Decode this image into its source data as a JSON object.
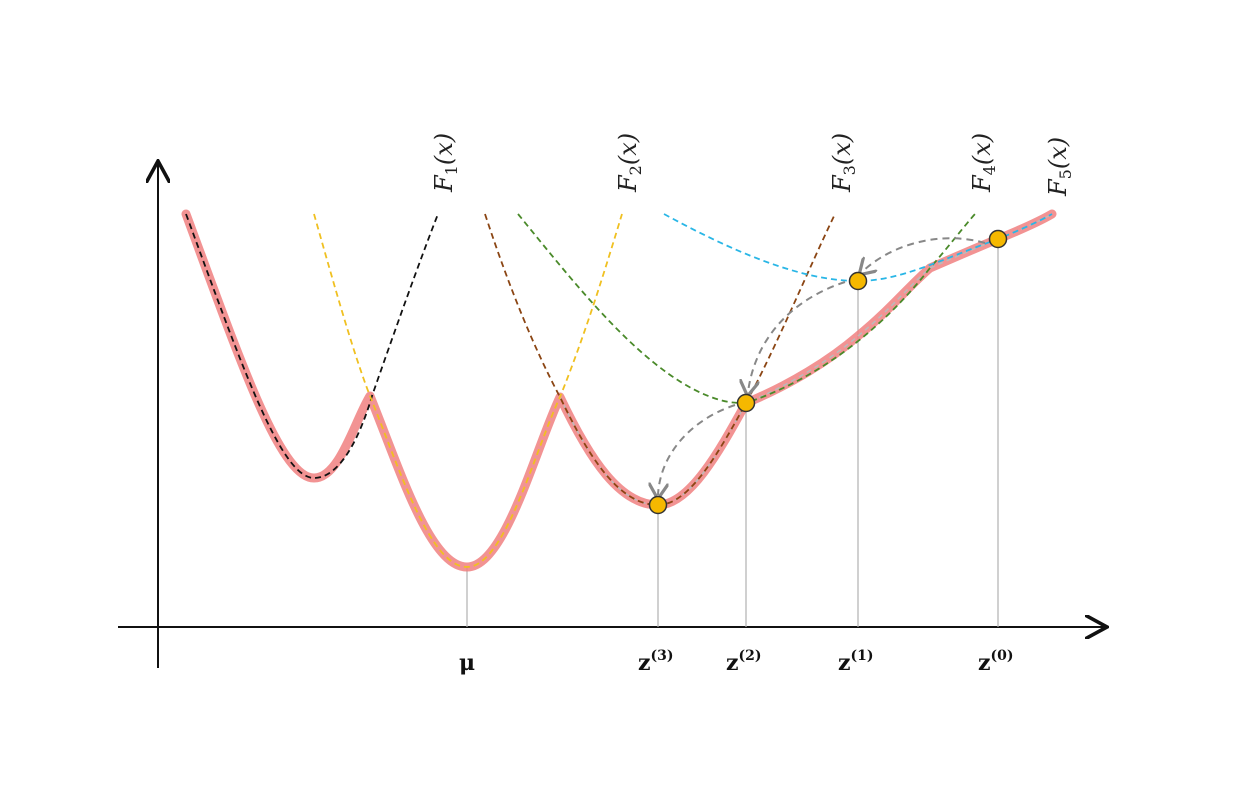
{
  "diagram": {
    "curve_labels": [
      {
        "id": "F1",
        "base": "F",
        "sub": "1",
        "arg": "(x)"
      },
      {
        "id": "F2",
        "base": "F",
        "sub": "2",
        "arg": "(x)"
      },
      {
        "id": "F3",
        "base": "F",
        "sub": "3",
        "arg": "(x)"
      },
      {
        "id": "F4",
        "base": "F",
        "sub": "4",
        "arg": "(x)"
      },
      {
        "id": "F5",
        "base": "F",
        "sub": "5",
        "arg": "(x)"
      }
    ],
    "axis_labels": {
      "mu": "μ",
      "z3": {
        "base": "z",
        "sup": "(3)"
      },
      "z2": {
        "base": "z",
        "sup": "(2)"
      },
      "z1": {
        "base": "z",
        "sup": "(1)"
      },
      "z0": {
        "base": "z",
        "sup": "(0)"
      }
    },
    "colors": {
      "envelope": "#f08080",
      "F1": "#111111",
      "F2": "#f0c020",
      "F3": "#8b4513",
      "F4": "#4a8a2a",
      "F5": "#29b6e6",
      "points": "#f5b800",
      "arrows": "#888888",
      "axis": "#111111",
      "droplines": "#aaaaaa"
    }
  }
}
